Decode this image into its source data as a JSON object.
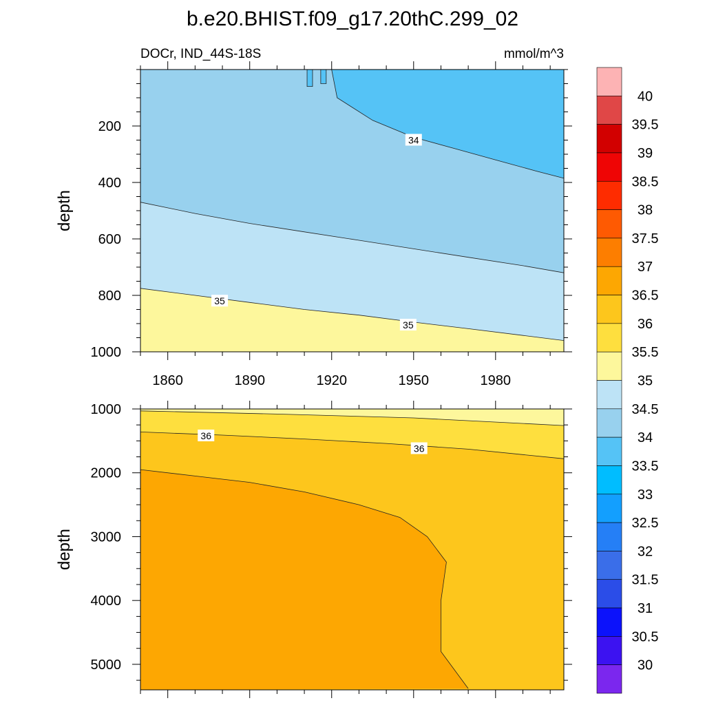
{
  "title": "b.e20.BHIST.f09_g17.20thC.299_02",
  "chart_data": [
    {
      "type": "contour",
      "panel": "upper",
      "left_label": "DOCr, IND_44S-18S",
      "right_label": "mmol/m^3",
      "ylabel": "depth",
      "xlabel": "",
      "xlim": [
        1850,
        2005
      ],
      "ylim": [
        0,
        1000
      ],
      "y_inverted": true,
      "xticks": [
        1860,
        1890,
        1920,
        1950,
        1980
      ],
      "xtick_labels": [
        "1860",
        "1890",
        "1920",
        "1950",
        "1980"
      ],
      "yticks": [
        200,
        400,
        600,
        800,
        1000
      ],
      "ytick_labels": [
        "200",
        "400",
        "600",
        "800",
        "1000"
      ],
      "contour_lines": [
        {
          "level": 34,
          "label": "34",
          "points": [
            [
              1920,
              0
            ],
            [
              1922,
              100
            ],
            [
              1935,
              180
            ],
            [
              1950,
              240
            ],
            [
              1965,
              280
            ],
            [
              1980,
              320
            ],
            [
              1995,
              360
            ],
            [
              2005,
              385
            ]
          ]
        },
        {
          "level": 34.5,
          "label": "",
          "points": [
            [
              1850,
              470
            ],
            [
              1870,
              510
            ],
            [
              1890,
              545
            ],
            [
              1910,
              575
            ],
            [
              1930,
              605
            ],
            [
              1950,
              635
            ],
            [
              1970,
              665
            ],
            [
              1990,
              695
            ],
            [
              2005,
              720
            ]
          ]
        },
        {
          "level": 35,
          "label": "35",
          "points": [
            [
              1850,
              775
            ],
            [
              1870,
              800
            ],
            [
              1890,
              825
            ],
            [
              1910,
              850
            ],
            [
              1930,
              870
            ],
            [
              1950,
              895
            ],
            [
              1970,
              918
            ],
            [
              1990,
              942
            ],
            [
              2005,
              960
            ]
          ]
        }
      ],
      "contour_labels": [
        {
          "text": "34",
          "x": 1950,
          "y": 250
        },
        {
          "text": "35",
          "x": 1879,
          "y": 820
        },
        {
          "text": "35",
          "x": 1948,
          "y": 905
        }
      ]
    },
    {
      "type": "contour",
      "panel": "lower",
      "ylabel": "depth",
      "xlabel": "",
      "xlim": [
        1850,
        2005
      ],
      "ylim": [
        1000,
        5400
      ],
      "y_inverted": true,
      "xticks": [
        1860,
        1890,
        1920,
        1950,
        1980
      ],
      "yticks": [
        1000,
        2000,
        3000,
        4000,
        5000
      ],
      "ytick_labels": [
        "1000",
        "2000",
        "3000",
        "4000",
        "5000"
      ],
      "contour_lines": [
        {
          "level": 35.5,
          "label": "",
          "points": [
            [
              1850,
              1030
            ],
            [
              1900,
              1080
            ],
            [
              1950,
              1140
            ],
            [
              2005,
              1260
            ]
          ]
        },
        {
          "level": 36,
          "label": "36",
          "points": [
            [
              1850,
              1360
            ],
            [
              1880,
              1410
            ],
            [
              1910,
              1470
            ],
            [
              1940,
              1540
            ],
            [
              1970,
              1630
            ],
            [
              2005,
              1780
            ]
          ]
        },
        {
          "level": 36.5,
          "label": "",
          "points": [
            [
              1850,
              1950
            ],
            [
              1870,
              2050
            ],
            [
              1890,
              2150
            ],
            [
              1910,
              2300
            ],
            [
              1930,
              2500
            ],
            [
              1945,
              2700
            ],
            [
              1955,
              3000
            ],
            [
              1962,
              3400
            ],
            [
              1960,
              4000
            ],
            [
              1960,
              4800
            ],
            [
              1970,
              5380
            ]
          ]
        }
      ],
      "contour_labels": [
        {
          "text": "36",
          "x": 1874,
          "y": 1420
        },
        {
          "text": "36",
          "x": 1952,
          "y": 1620
        }
      ]
    }
  ],
  "colorbar": {
    "labels": [
      "40",
      "39.5",
      "39",
      "38.5",
      "38",
      "37.5",
      "37",
      "36.5",
      "36",
      "35.5",
      "35",
      "34.5",
      "34",
      "33.5",
      "33",
      "32.5",
      "32",
      "31.5",
      "31",
      "30.5",
      "30"
    ],
    "colors": [
      "#fdb3b4",
      "#e04747",
      "#d20000",
      "#ef0505",
      "#fe2c00",
      "#fe5a02",
      "#fd7e00",
      "#fda702",
      "#fdc61c",
      "#fedf3e",
      "#fdf79c",
      "#bde3f6",
      "#98d1ee",
      "#55c3f6",
      "#00bdff",
      "#139ffe",
      "#257ff6",
      "#3a6ee9",
      "#2b4de8",
      "#0c12fb",
      "#3c12f1",
      "#7b27ee"
    ]
  },
  "colors": {
    "upper_top_right": "#55c3f6",
    "upper_band_34": "#98d1ee",
    "upper_band_345": "#bde3f6",
    "upper_band_35": "#fdf79c",
    "lower_band_355": "#fdf79c",
    "lower_band_36": "#fedf3e",
    "lower_band_365": "#fdc61c",
    "lower_band_37": "#fda702"
  }
}
